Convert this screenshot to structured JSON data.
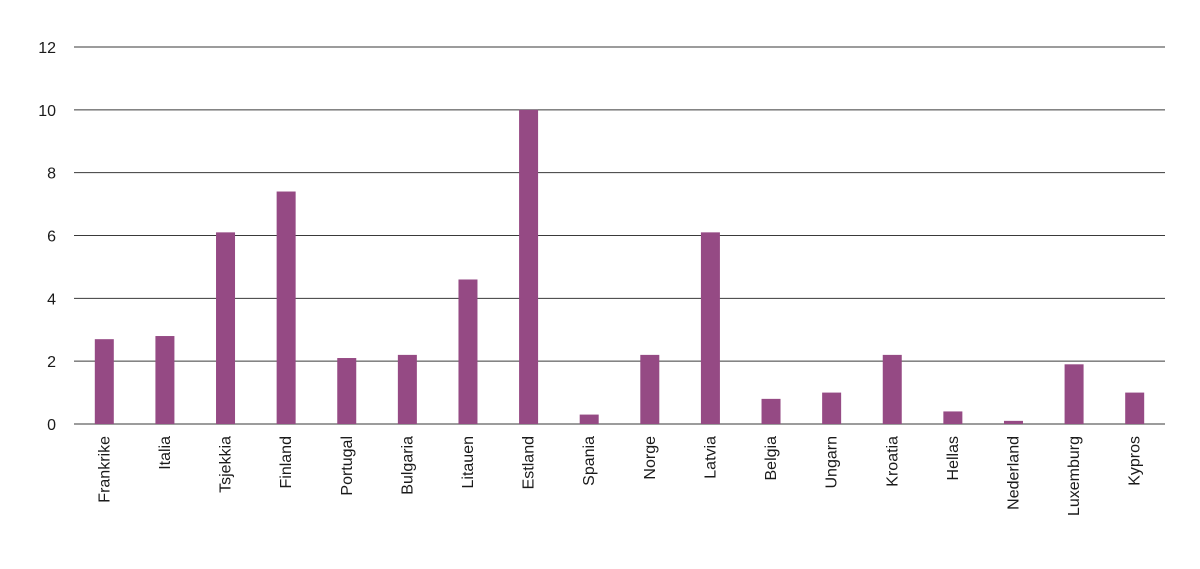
{
  "chart_data": {
    "type": "bar",
    "categories": [
      "Frankrike",
      "Italia",
      "Tsjekkia",
      "Finland",
      "Portugal",
      "Bulgaria",
      "Litauen",
      "Estland",
      "Spania",
      "Norge",
      "Latvia",
      "Belgia",
      "Ungarn",
      "Kroatia",
      "Hellas",
      "Nederland",
      "Luxemburg",
      "Kypros"
    ],
    "values": [
      2.7,
      2.8,
      6.1,
      7.4,
      2.1,
      2.2,
      4.6,
      10.0,
      0.3,
      2.2,
      6.1,
      0.8,
      1.0,
      2.2,
      0.4,
      0.1,
      1.9,
      1.0
    ],
    "yticks": [
      "0",
      "2",
      "4",
      "6",
      "8",
      "10",
      "12"
    ],
    "ylim": [
      0,
      12
    ],
    "grid": true,
    "bar_color": "#954a84"
  }
}
